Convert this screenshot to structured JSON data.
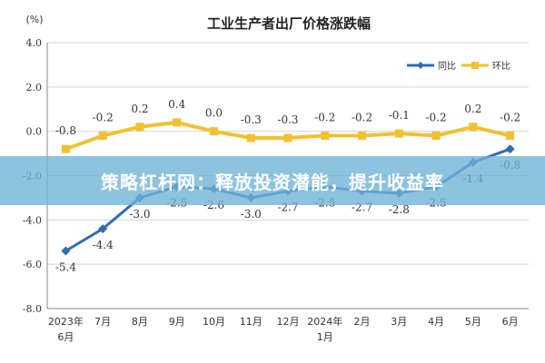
{
  "banner": {
    "text": "策略杠杆网：释放投资潜能，提升收益率"
  },
  "chart_data": {
    "type": "line",
    "title": "工业生产者出厂价格涨跌幅",
    "ylabel": "(%)",
    "ylim": [
      -8.0,
      4.0
    ],
    "yticks": [
      "4.0",
      "2.0",
      "0.0",
      "-2.0",
      "-4.0",
      "-6.0",
      "-8.0"
    ],
    "ytick_values": [
      4,
      2,
      0,
      -2,
      -4,
      -6,
      -8
    ],
    "categories": [
      [
        "2023年",
        "6月"
      ],
      [
        "7月"
      ],
      [
        "8月"
      ],
      [
        "9月"
      ],
      [
        "10月"
      ],
      [
        "11月"
      ],
      [
        "12月"
      ],
      [
        "2024年",
        "1月"
      ],
      [
        "2月"
      ],
      [
        "3月"
      ],
      [
        "4月"
      ],
      [
        "5月"
      ],
      [
        "6月"
      ]
    ],
    "grid": true,
    "legend_position": "top-right",
    "series": [
      {
        "name": "同比",
        "color": "#2e6db4",
        "values": [
          -5.4,
          -4.4,
          -3.0,
          -2.5,
          -2.6,
          -3.0,
          -2.7,
          -2.5,
          -2.7,
          -2.8,
          -2.5,
          -1.4,
          -0.8
        ],
        "labels": [
          "-5.4",
          "-4.4",
          "-3.0",
          "-2.5",
          "-2.6",
          "-3.0",
          "-2.7",
          "-2.5",
          "-2.7",
          "-2.8",
          "-2.5",
          "-1.4",
          "-0.8"
        ]
      },
      {
        "name": "环比",
        "color": "#f2c12e",
        "values": [
          -0.8,
          -0.2,
          0.2,
          0.4,
          0.0,
          -0.3,
          -0.3,
          -0.2,
          -0.2,
          -0.1,
          -0.2,
          0.2,
          -0.2
        ],
        "labels": [
          "-0.8",
          "-0.2",
          "0.2",
          "0.4",
          "0.0",
          "-0.3",
          "-0.3",
          "-0.2",
          "-0.2",
          "-0.1",
          "-0.2",
          "0.2",
          "-0.2"
        ]
      }
    ]
  }
}
